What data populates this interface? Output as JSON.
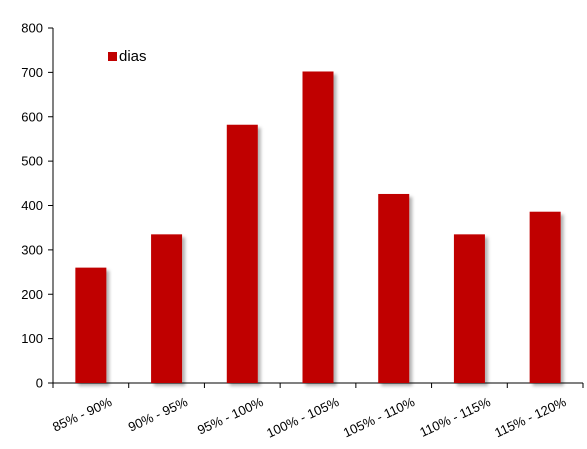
{
  "chart_data": {
    "type": "bar",
    "title": "",
    "xlabel": "",
    "ylabel": "",
    "categories": [
      "85% - 90%",
      "90% - 95%",
      "95% - 100%",
      "100% - 105%",
      "105% - 110%",
      "110% - 115%",
      "115% - 120%"
    ],
    "series": [
      {
        "name": "dias",
        "values": [
          260,
          335,
          582,
          702,
          426,
          335,
          386
        ],
        "color": "#c00000"
      }
    ],
    "ylim": [
      0,
      800
    ],
    "yticks": [
      0,
      100,
      200,
      300,
      400,
      500,
      600,
      700,
      800
    ],
    "grid": false,
    "legend_position": "top-left"
  }
}
